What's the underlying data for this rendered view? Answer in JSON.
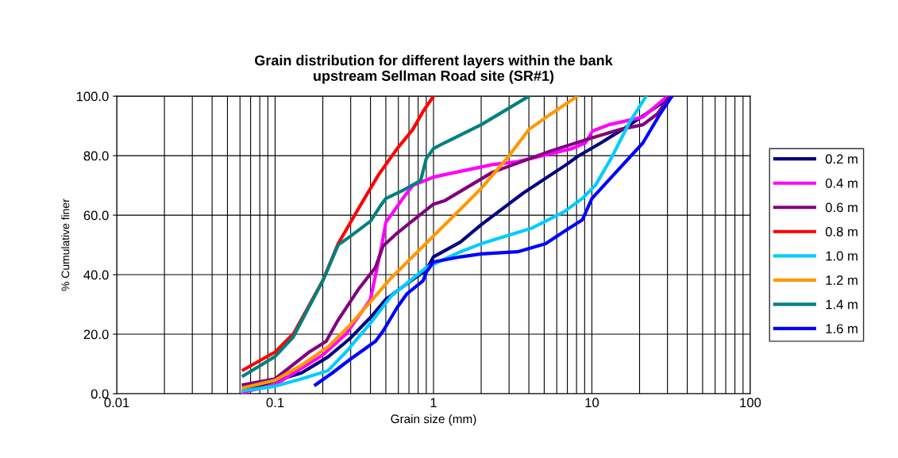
{
  "chart_data": {
    "type": "line",
    "title": "Grain distribution for different layers within the bank\nupstream Sellman Road site (SR#1)",
    "xlabel": "Grain size (mm)",
    "ylabel": "% Cumulative finer",
    "log": "x",
    "grid": true,
    "legend": "right",
    "marker": "none",
    "line_style": "solid",
    "xlim": [
      0.01,
      100
    ],
    "xticks": [
      0.01,
      0.1,
      1,
      10,
      100
    ],
    "ylim": [
      0,
      100
    ],
    "yticks": [
      {
        "value": 0,
        "label": "0.0"
      },
      {
        "value": 20,
        "label": "20.0"
      },
      {
        "value": 40,
        "label": "40.0"
      },
      {
        "value": 60,
        "label": "60.0"
      },
      {
        "value": 80,
        "label": "80.0"
      },
      {
        "value": 100,
        "label": "100.0"
      }
    ],
    "series": [
      {
        "name": "0.2 m",
        "color": "#000080",
        "x": [
          0.063,
          0.147,
          0.215,
          0.295,
          0.4,
          0.5,
          0.68,
          0.9,
          1.0,
          1.48,
          2.0,
          3.7,
          6.9,
          8.1,
          11.4,
          17.4,
          32
        ],
        "values": [
          1,
          7,
          12.3,
          18.4,
          25.6,
          31.7,
          37,
          41.6,
          46,
          51,
          56.8,
          67.5,
          77,
          79.7,
          84.3,
          90.4,
          100
        ]
      },
      {
        "name": "0.4 m",
        "color": "#ff00ff",
        "x": [
          0.063,
          0.1,
          0.2,
          0.28,
          0.4,
          0.47,
          0.5,
          0.64,
          0.74,
          1.0,
          1.17,
          2.35,
          3.4,
          7.5,
          9.1,
          10.1,
          12.8,
          21,
          30
        ],
        "values": [
          0.5,
          3,
          13,
          20,
          31.7,
          49.6,
          57.6,
          65.6,
          70,
          72.8,
          73.6,
          77,
          78,
          82.4,
          84.3,
          88.3,
          90.4,
          93,
          100
        ]
      },
      {
        "name": "0.6 m",
        "color": "#800080",
        "x": [
          0.063,
          0.1,
          0.165,
          0.21,
          0.25,
          0.34,
          0.43,
          0.48,
          0.59,
          1.0,
          1.17,
          2.35,
          5.5,
          10,
          15,
          21,
          26,
          31
        ],
        "values": [
          3,
          5,
          14.1,
          17.6,
          24.8,
          35.5,
          42.4,
          49.6,
          54,
          63.7,
          64.8,
          74.4,
          81.6,
          86,
          88.8,
          90.4,
          94.1,
          100
        ]
      },
      {
        "name": "0.8 m",
        "color": "#ff0000",
        "x": [
          0.063,
          0.1,
          0.131,
          0.2,
          0.25,
          0.342,
          0.45,
          0.59,
          0.74,
          0.86,
          1.0
        ],
        "values": [
          8,
          14,
          20.3,
          38,
          50.4,
          62.9,
          73.6,
          82.4,
          88.8,
          94.9,
          100
        ]
      },
      {
        "name": "1.0 m",
        "color": "#00ccff",
        "x": [
          0.063,
          0.1,
          0.147,
          0.215,
          0.28,
          0.4,
          0.54,
          0.9,
          1.48,
          2.0,
          4.2,
          6.6,
          8.7,
          10.5,
          13.2,
          17.4,
          22
        ],
        "values": [
          1,
          2.5,
          5,
          7.7,
          14,
          23.7,
          32.8,
          42.4,
          47.7,
          50.4,
          55.7,
          61,
          65.6,
          70,
          79,
          91.5,
          100
        ]
      },
      {
        "name": "1.2 m",
        "color": "#ff9900",
        "x": [
          0.063,
          0.1,
          0.147,
          0.215,
          0.295,
          0.4,
          0.54,
          1.0,
          1.48,
          2.0,
          2.9,
          4.0,
          5.5,
          8.1
        ],
        "values": [
          2,
          4.5,
          9.6,
          15.7,
          22.9,
          30.9,
          38.9,
          53,
          62,
          69,
          79,
          88.8,
          94,
          100
        ]
      },
      {
        "name": "1.4 m",
        "color": "#008080",
        "x": [
          0.063,
          0.1,
          0.13,
          0.2,
          0.25,
          0.3,
          0.4,
          0.47,
          0.5,
          0.64,
          0.83,
          0.9,
          1.0,
          1.17,
          2.0,
          4.0
        ],
        "values": [
          6,
          12.5,
          19,
          38,
          50,
          53,
          58,
          63.7,
          65.6,
          68.3,
          71.7,
          79,
          82.4,
          84.3,
          90.4,
          100
        ]
      },
      {
        "name": "1.6 m",
        "color": "#0000ff",
        "x": [
          0.18,
          0.23,
          0.295,
          0.43,
          0.48,
          0.59,
          0.68,
          0.86,
          0.9,
          1.0,
          1.48,
          2.0,
          3.4,
          5.1,
          6.9,
          8.7,
          10.0,
          11.9,
          21,
          27,
          32
        ],
        "values": [
          3,
          7,
          11.4,
          17.6,
          21,
          29,
          33.6,
          38,
          40.8,
          44.3,
          46,
          47,
          47.7,
          50.4,
          55,
          58.4,
          65.6,
          70,
          84.3,
          94.1,
          100
        ]
      }
    ]
  }
}
